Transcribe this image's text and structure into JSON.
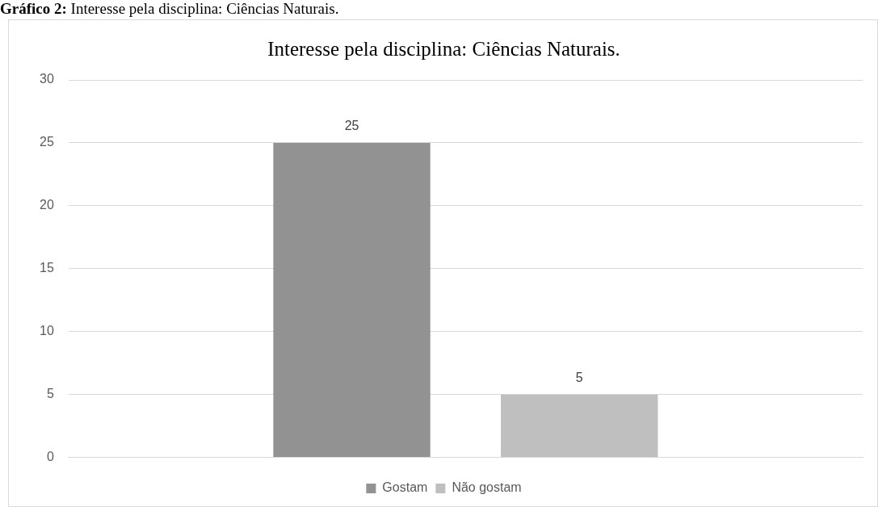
{
  "chart_data": {
    "type": "bar",
    "title": "Interesse pela disciplina: Ciências Naturais.",
    "annotations": [
      "Gráfico 2: Interesse pela disciplina: Ciências Naturais."
    ],
    "categories": [
      null
    ],
    "series": [
      {
        "name": "Gostam",
        "color": "#929292",
        "values": [
          25
        ]
      },
      {
        "name": "Não gostam",
        "color": "#bfbfbf",
        "values": [
          5
        ]
      }
    ],
    "ylim": [
      0,
      30
    ],
    "yticks": [
      0,
      5,
      10,
      15,
      20,
      25,
      30
    ],
    "grid": "y",
    "legend": "bottom",
    "data_labels": true
  }
}
